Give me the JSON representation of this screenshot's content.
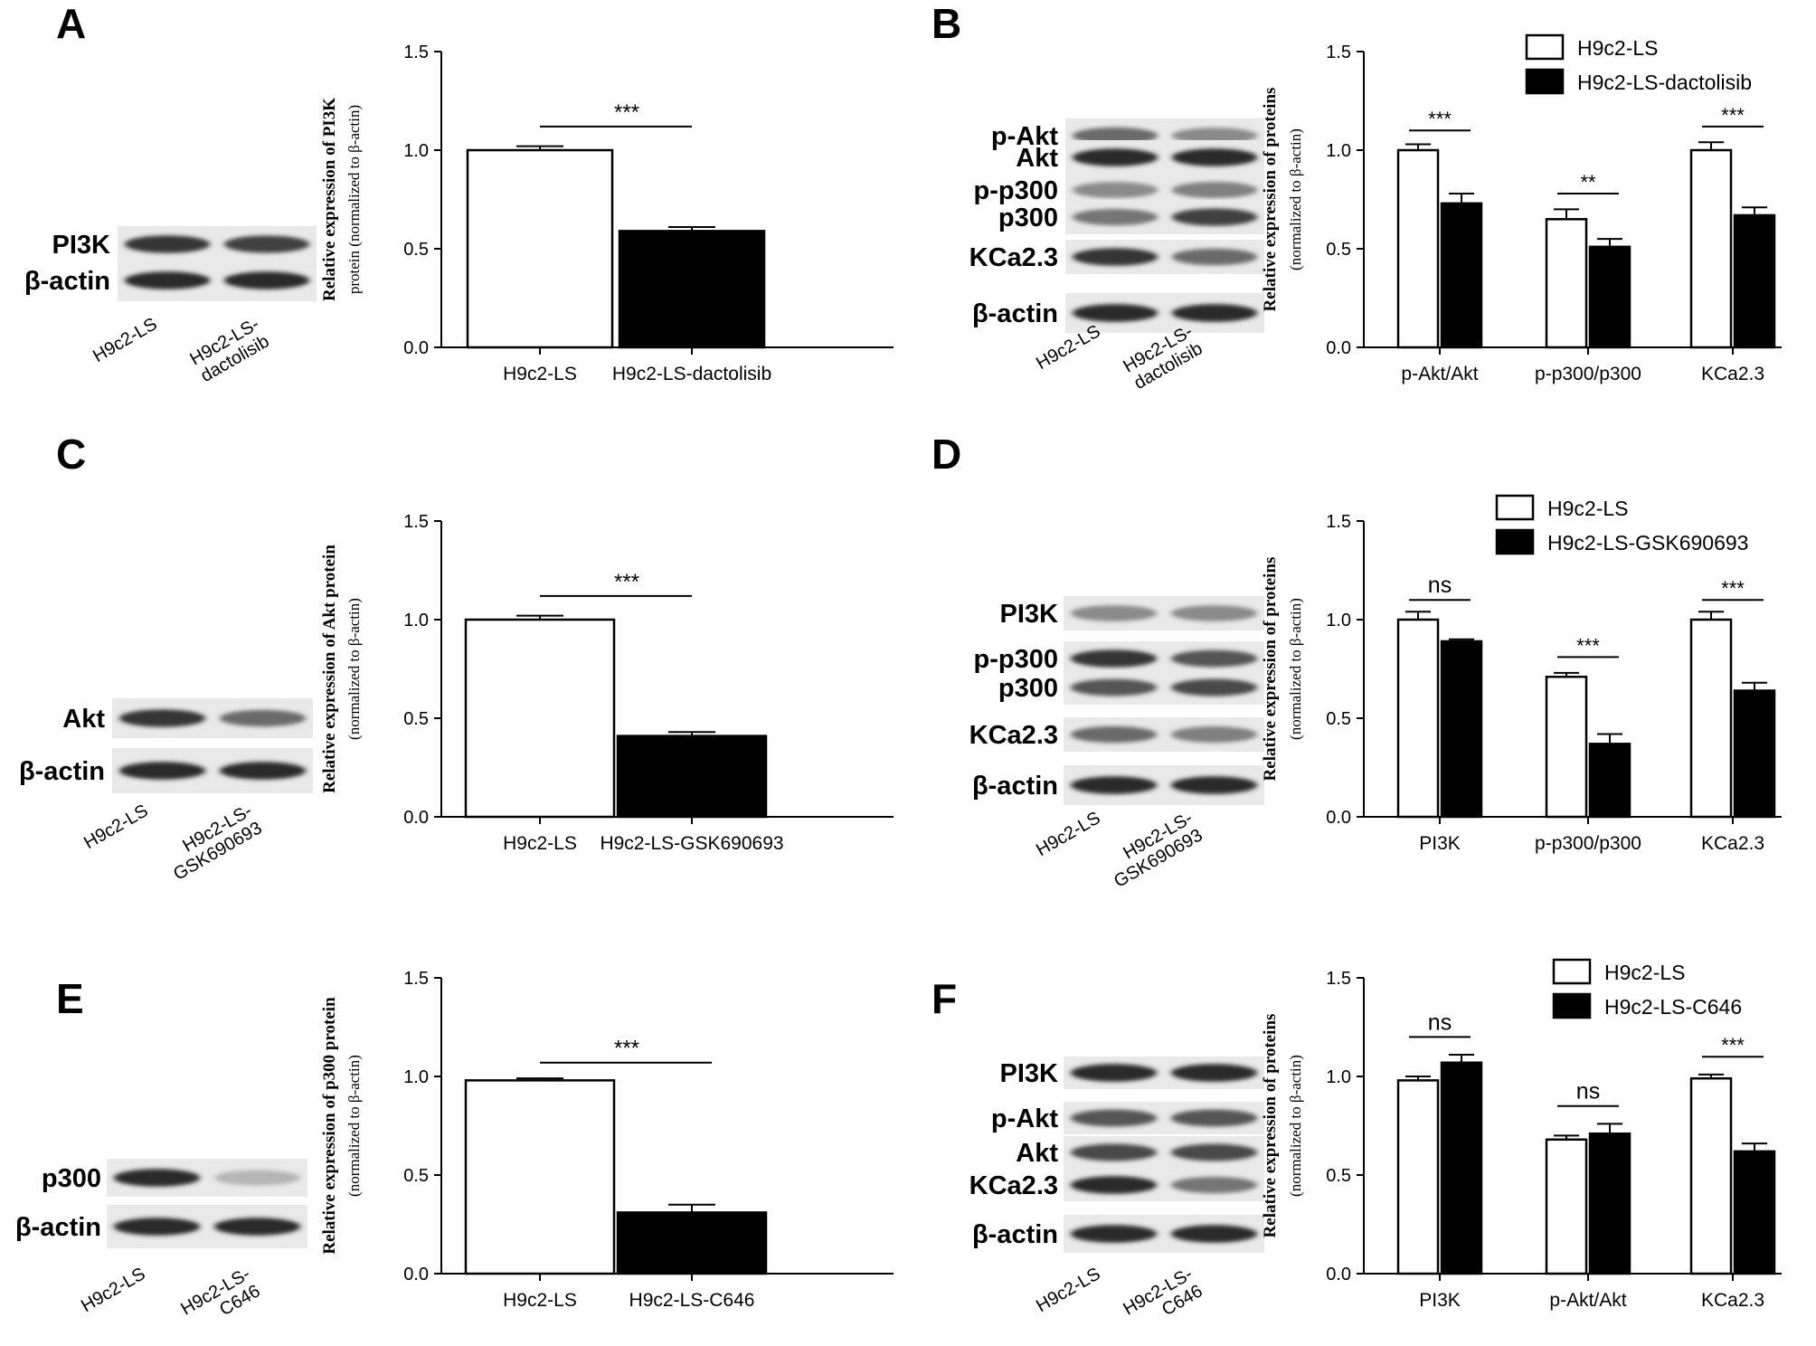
{
  "panels": [
    {
      "id": "A",
      "letter": "A",
      "blot": {
        "bands": [
          {
            "label": "PI3K",
            "lanes": [
              0.85,
              0.8
            ]
          },
          {
            "label": "β-actin",
            "lanes": [
              0.9,
              0.9
            ]
          }
        ],
        "lanes": [
          {
            "lines": [
              "H9c2-LS"
            ]
          },
          {
            "lines": [
              "H9c2-LS-",
              "dactolisib"
            ]
          }
        ]
      },
      "chart": {
        "type": "bar",
        "ylabel_lines": [
          "Relative expression of PI3K",
          "protein (normalized to β-actin)"
        ],
        "ylim": [
          0,
          1.5
        ],
        "yticks": [
          "0.0",
          "0.5",
          "1.0",
          "1.5"
        ],
        "categories": [
          "H9c2-LS",
          "H9c2-LS-dactolisib"
        ],
        "values": [
          1.0,
          0.59
        ],
        "errors": [
          0.02,
          0.02
        ],
        "fills": [
          "#ffffff",
          "#000000"
        ],
        "sig": [
          {
            "text": "***",
            "from": 0,
            "to": 1,
            "y": 1.12
          }
        ]
      }
    },
    {
      "id": "B",
      "letter": "B",
      "blot": {
        "bands": [
          {
            "label": "p-Akt",
            "lanes": [
              0.6,
              0.45
            ]
          },
          {
            "label": "Akt",
            "lanes": [
              0.9,
              0.9
            ]
          },
          {
            "label": "p-p300",
            "lanes": [
              0.45,
              0.5
            ]
          },
          {
            "label": "p300",
            "lanes": [
              0.55,
              0.8
            ]
          },
          {
            "label": "KCa2.3",
            "lanes": [
              0.85,
              0.6
            ]
          },
          {
            "label": "β-actin",
            "lanes": [
              0.9,
              0.9
            ]
          }
        ],
        "lanes": [
          {
            "lines": [
              "H9c2-LS"
            ]
          },
          {
            "lines": [
              "H9c2-LS-",
              "dactolisib"
            ]
          }
        ]
      },
      "chart": {
        "type": "bar",
        "ylabel_lines": [
          "Relative expression of  proteins",
          "(normalized to β-actin)"
        ],
        "ylim": [
          0,
          1.5
        ],
        "yticks": [
          "0.0",
          "0.5",
          "1.0",
          "1.5"
        ],
        "categories": [
          "p-Akt/Akt",
          "p-p300/p300",
          "KCa2.3"
        ],
        "series": [
          {
            "name": "H9c2-LS",
            "fill": "#ffffff",
            "values": [
              1.0,
              0.65,
              1.0
            ],
            "errors": [
              0.03,
              0.05,
              0.04
            ]
          },
          {
            "name": "H9c2-LS-dactolisib",
            "fill": "#000000",
            "values": [
              0.73,
              0.51,
              0.67
            ],
            "errors": [
              0.05,
              0.04,
              0.04
            ]
          }
        ],
        "sig": [
          {
            "text": "***",
            "group": 0,
            "y": 1.1
          },
          {
            "text": "**",
            "group": 1,
            "y": 0.78
          },
          {
            "text": "***",
            "group": 2,
            "y": 1.12
          }
        ],
        "legend": "top-right"
      }
    },
    {
      "id": "C",
      "letter": "C",
      "blot": {
        "bands": [
          {
            "label": "Akt",
            "lanes": [
              0.85,
              0.6
            ]
          },
          {
            "label": "β-actin",
            "lanes": [
              0.9,
              0.9
            ]
          }
        ],
        "lanes": [
          {
            "lines": [
              "H9c2-LS"
            ]
          },
          {
            "lines": [
              "H9c2-LS-",
              "GSK690693"
            ]
          }
        ]
      },
      "chart": {
        "type": "bar",
        "ylabel_lines": [
          "Relative expression of Akt protein",
          "(normalized to β-actin)"
        ],
        "ylim": [
          0,
          1.5
        ],
        "yticks": [
          "0.0",
          "0.5",
          "1.0",
          "1.5"
        ],
        "categories": [
          "H9c2-LS",
          "H9c2-LS-GSK690693"
        ],
        "values": [
          1.0,
          0.41
        ],
        "errors": [
          0.02,
          0.02
        ],
        "fills": [
          "#ffffff",
          "#000000"
        ],
        "sig": [
          {
            "text": "***",
            "from": 0,
            "to": 1,
            "y": 1.12
          }
        ]
      }
    },
    {
      "id": "D",
      "letter": "D",
      "blot": {
        "bands": [
          {
            "label": "PI3K",
            "lanes": [
              0.45,
              0.45
            ]
          },
          {
            "label": "p-p300",
            "lanes": [
              0.85,
              0.7
            ]
          },
          {
            "label": "p300",
            "lanes": [
              0.7,
              0.75
            ]
          },
          {
            "label": "KCa2.3",
            "lanes": [
              0.6,
              0.5
            ]
          },
          {
            "label": "β-actin",
            "lanes": [
              0.9,
              0.9
            ]
          }
        ],
        "lanes": [
          {
            "lines": [
              "H9c2-LS"
            ]
          },
          {
            "lines": [
              "H9c2-LS-",
              "GSK690693"
            ]
          }
        ]
      },
      "chart": {
        "type": "bar",
        "ylabel_lines": [
          "Relative expression of  proteins",
          "(normalized to β-actin)"
        ],
        "ylim": [
          0,
          1.5
        ],
        "yticks": [
          "0.0",
          "0.5",
          "1.0",
          "1.5"
        ],
        "categories": [
          "PI3K",
          "p-p300/p300",
          "KCa2.3"
        ],
        "series": [
          {
            "name": "H9c2-LS",
            "fill": "#ffffff",
            "values": [
              1.0,
              0.71,
              1.0
            ],
            "errors": [
              0.04,
              0.02,
              0.04
            ]
          },
          {
            "name": "H9c2-LS-GSK690693",
            "fill": "#000000",
            "values": [
              0.89,
              0.37,
              0.64
            ],
            "errors": [
              0.01,
              0.05,
              0.04
            ]
          }
        ],
        "sig": [
          {
            "text": "ns",
            "group": 0,
            "y": 1.1
          },
          {
            "text": "***",
            "group": 1,
            "y": 0.81
          },
          {
            "text": "***",
            "group": 2,
            "y": 1.1
          }
        ],
        "legend": "top-right"
      }
    },
    {
      "id": "E",
      "letter": "E",
      "blot": {
        "bands": [
          {
            "label": "p300",
            "lanes": [
              0.9,
              0.25
            ]
          },
          {
            "label": "β-actin",
            "lanes": [
              0.9,
              0.9
            ]
          }
        ],
        "lanes": [
          {
            "lines": [
              "H9c2-LS"
            ]
          },
          {
            "lines": [
              "H9c2-LS-",
              "C646"
            ]
          }
        ]
      },
      "chart": {
        "type": "bar",
        "ylabel_lines": [
          "Relative expression of p300 protein",
          "(normalized to β-actin)"
        ],
        "ylim": [
          0,
          1.5
        ],
        "yticks": [
          "0.0",
          "0.5",
          "1.0",
          "1.5"
        ],
        "categories": [
          "H9c2-LS",
          "H9c2-LS-C646"
        ],
        "values": [
          0.98,
          0.31
        ],
        "errors": [
          0.01,
          0.04
        ],
        "fills": [
          "#ffffff",
          "#000000"
        ],
        "sig": [
          {
            "text": "***",
            "from": 0,
            "to": 1,
            "y": 1.07
          }
        ]
      }
    },
    {
      "id": "F",
      "letter": "F",
      "blot": {
        "bands": [
          {
            "label": "PI3K",
            "lanes": [
              0.9,
              0.9
            ]
          },
          {
            "label": "p-Akt",
            "lanes": [
              0.7,
              0.7
            ]
          },
          {
            "label": "Akt",
            "lanes": [
              0.75,
              0.75
            ]
          },
          {
            "label": "KCa2.3",
            "lanes": [
              0.9,
              0.55
            ]
          },
          {
            "label": "β-actin",
            "lanes": [
              0.9,
              0.9
            ]
          }
        ],
        "lanes": [
          {
            "lines": [
              "H9c2-LS"
            ]
          },
          {
            "lines": [
              "H9c2-LS-",
              "C646"
            ]
          }
        ]
      },
      "chart": {
        "type": "bar",
        "ylabel_lines": [
          "Relative expression of  proteins",
          "(normalized to β-actin)"
        ],
        "ylim": [
          0,
          1.5
        ],
        "yticks": [
          "0.0",
          "0.5",
          "1.0",
          "1.5"
        ],
        "categories": [
          "PI3K",
          "p-Akt/Akt",
          "KCa2.3"
        ],
        "series": [
          {
            "name": "H9c2-LS",
            "fill": "#ffffff",
            "values": [
              0.98,
              0.68,
              0.99
            ],
            "errors": [
              0.02,
              0.02,
              0.02
            ]
          },
          {
            "name": "H9c2-LS-C646",
            "fill": "#000000",
            "values": [
              1.07,
              0.71,
              0.62
            ],
            "errors": [
              0.04,
              0.05,
              0.04
            ]
          }
        ],
        "sig": [
          {
            "text": "ns",
            "group": 0,
            "y": 1.2
          },
          {
            "text": "ns",
            "group": 1,
            "y": 0.85
          },
          {
            "text": "***",
            "group": 2,
            "y": 1.1
          }
        ],
        "legend": "top-right"
      }
    }
  ],
  "chart_data": [
    {
      "panel": "A",
      "type": "bar",
      "title": "",
      "xlabel": "",
      "ylabel": "Relative expression of PI3K protein (normalized to β-actin)",
      "ylim": [
        0,
        1.5
      ],
      "categories": [
        "H9c2-LS",
        "H9c2-LS-dactolisib"
      ],
      "values": [
        1.0,
        0.59
      ],
      "errors": [
        0.02,
        0.02
      ],
      "annotations": [
        "***"
      ]
    },
    {
      "panel": "B",
      "type": "bar",
      "title": "",
      "xlabel": "",
      "ylabel": "Relative expression of  proteins (normalized to β-actin)",
      "ylim": [
        0,
        1.5
      ],
      "categories": [
        "p-Akt/Akt",
        "p-p300/p300",
        "KCa2.3"
      ],
      "series": [
        {
          "name": "H9c2-LS",
          "values": [
            1.0,
            0.65,
            1.0
          ]
        },
        {
          "name": "H9c2-LS-dactolisib",
          "values": [
            0.73,
            0.51,
            0.67
          ]
        }
      ],
      "annotations": [
        "***",
        "**",
        "***"
      ],
      "legend": "top-right"
    },
    {
      "panel": "C",
      "type": "bar",
      "title": "",
      "xlabel": "",
      "ylabel": "Relative expression of Akt protein (normalized to β-actin)",
      "ylim": [
        0,
        1.5
      ],
      "categories": [
        "H9c2-LS",
        "H9c2-LS-GSK690693"
      ],
      "values": [
        1.0,
        0.41
      ],
      "errors": [
        0.02,
        0.02
      ],
      "annotations": [
        "***"
      ]
    },
    {
      "panel": "D",
      "type": "bar",
      "title": "",
      "xlabel": "",
      "ylabel": "Relative expression of  proteins (normalized to β-actin)",
      "ylim": [
        0,
        1.5
      ],
      "categories": [
        "PI3K",
        "p-p300/p300",
        "KCa2.3"
      ],
      "series": [
        {
          "name": "H9c2-LS",
          "values": [
            1.0,
            0.71,
            1.0
          ]
        },
        {
          "name": "H9c2-LS-GSK690693",
          "values": [
            0.89,
            0.37,
            0.64
          ]
        }
      ],
      "annotations": [
        "ns",
        "***",
        "***"
      ],
      "legend": "top-right"
    },
    {
      "panel": "E",
      "type": "bar",
      "title": "",
      "xlabel": "",
      "ylabel": "Relative expression of p300 protein (normalized to β-actin)",
      "ylim": [
        0,
        1.5
      ],
      "categories": [
        "H9c2-LS",
        "H9c2-LS-C646"
      ],
      "values": [
        0.98,
        0.31
      ],
      "errors": [
        0.01,
        0.04
      ],
      "annotations": [
        "***"
      ]
    },
    {
      "panel": "F",
      "type": "bar",
      "title": "",
      "xlabel": "",
      "ylabel": "Relative expression of  proteins (normalized to β-actin)",
      "ylim": [
        0,
        1.5
      ],
      "categories": [
        "PI3K",
        "p-Akt/Akt",
        "KCa2.3"
      ],
      "series": [
        {
          "name": "H9c2-LS",
          "values": [
            0.98,
            0.68,
            0.99
          ]
        },
        {
          "name": "H9c2-LS-C646",
          "values": [
            1.07,
            0.71,
            0.62
          ]
        }
      ],
      "annotations": [
        "ns",
        "ns",
        "***"
      ],
      "legend": "top-right"
    }
  ]
}
